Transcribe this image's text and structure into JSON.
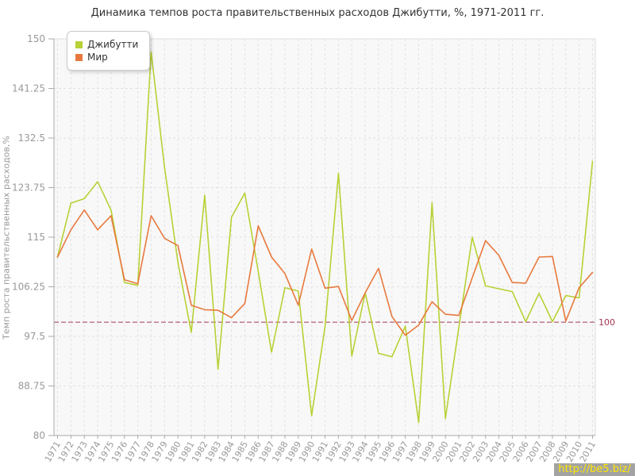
{
  "title": "Динамика темпов роста правительственных расходов Джибутти, %, 1971-2011 гг.",
  "y_axis_title": "Темп роста правительственных расходов,%",
  "watermark": "http://be5.biz/",
  "reference_line": {
    "value": 100,
    "label": "100",
    "color": "#a23850"
  },
  "colors": {
    "plot_bg": "#f8f8f8",
    "plot_border": "#dcdcdc",
    "grid": "#e2e2e2",
    "axis": "#aaaaaa",
    "tick_text": "#999999",
    "title_text": "#333333"
  },
  "chart_data": {
    "type": "line",
    "title": "Динамика темпов роста правительственных расходов Джибутти, %, 1971-2011 гг.",
    "ylabel": "Темп роста правительственных расходов,%",
    "ylim": [
      80,
      150
    ],
    "yticks": [
      80,
      88.75,
      97.5,
      106.25,
      115,
      123.75,
      132.5,
      141.25,
      150
    ],
    "grid": true,
    "legend_position": "top-left",
    "x": [
      1971,
      1972,
      1973,
      1974,
      1975,
      1976,
      1977,
      1978,
      1979,
      1980,
      1981,
      1982,
      1983,
      1984,
      1985,
      1986,
      1987,
      1988,
      1989,
      1990,
      1991,
      1992,
      1993,
      1994,
      1995,
      1996,
      1997,
      1998,
      1999,
      2000,
      2001,
      2002,
      2003,
      2004,
      2005,
      2006,
      2007,
      2008,
      2009,
      2010,
      2011
    ],
    "series": [
      {
        "id": "djibouti",
        "name": "Джибутти",
        "color": "#b8d135",
        "values": [
          111.5,
          121.0,
          121.8,
          124.8,
          119.8,
          107.0,
          106.5,
          147.7,
          127.3,
          110.5,
          98.2,
          122.4,
          91.7,
          118.5,
          122.8,
          109.0,
          94.7,
          106.1,
          105.5,
          83.5,
          99.2,
          126.3,
          94.0,
          105.2,
          94.5,
          93.9,
          99.3,
          82.3,
          121.1,
          83.0,
          99.0,
          115.0,
          106.4,
          105.9,
          105.4,
          100.1,
          105.1,
          100.1,
          104.7,
          104.3,
          128.4
        ]
      },
      {
        "id": "world",
        "name": "Мир",
        "color": "#e8793e",
        "values": [
          111.5,
          116.3,
          119.8,
          116.3,
          118.8,
          107.5,
          106.8,
          118.8,
          114.8,
          113.5,
          103.0,
          102.2,
          102.1,
          100.8,
          103.3,
          117.0,
          111.5,
          108.6,
          103.0,
          112.9,
          106.0,
          106.3,
          100.3,
          105.2,
          109.5,
          101.0,
          97.7,
          99.5,
          103.6,
          101.4,
          101.2,
          107.8,
          114.4,
          111.8,
          107.0,
          106.9,
          111.5,
          111.6,
          100.2,
          106.1,
          108.8
        ]
      }
    ]
  }
}
